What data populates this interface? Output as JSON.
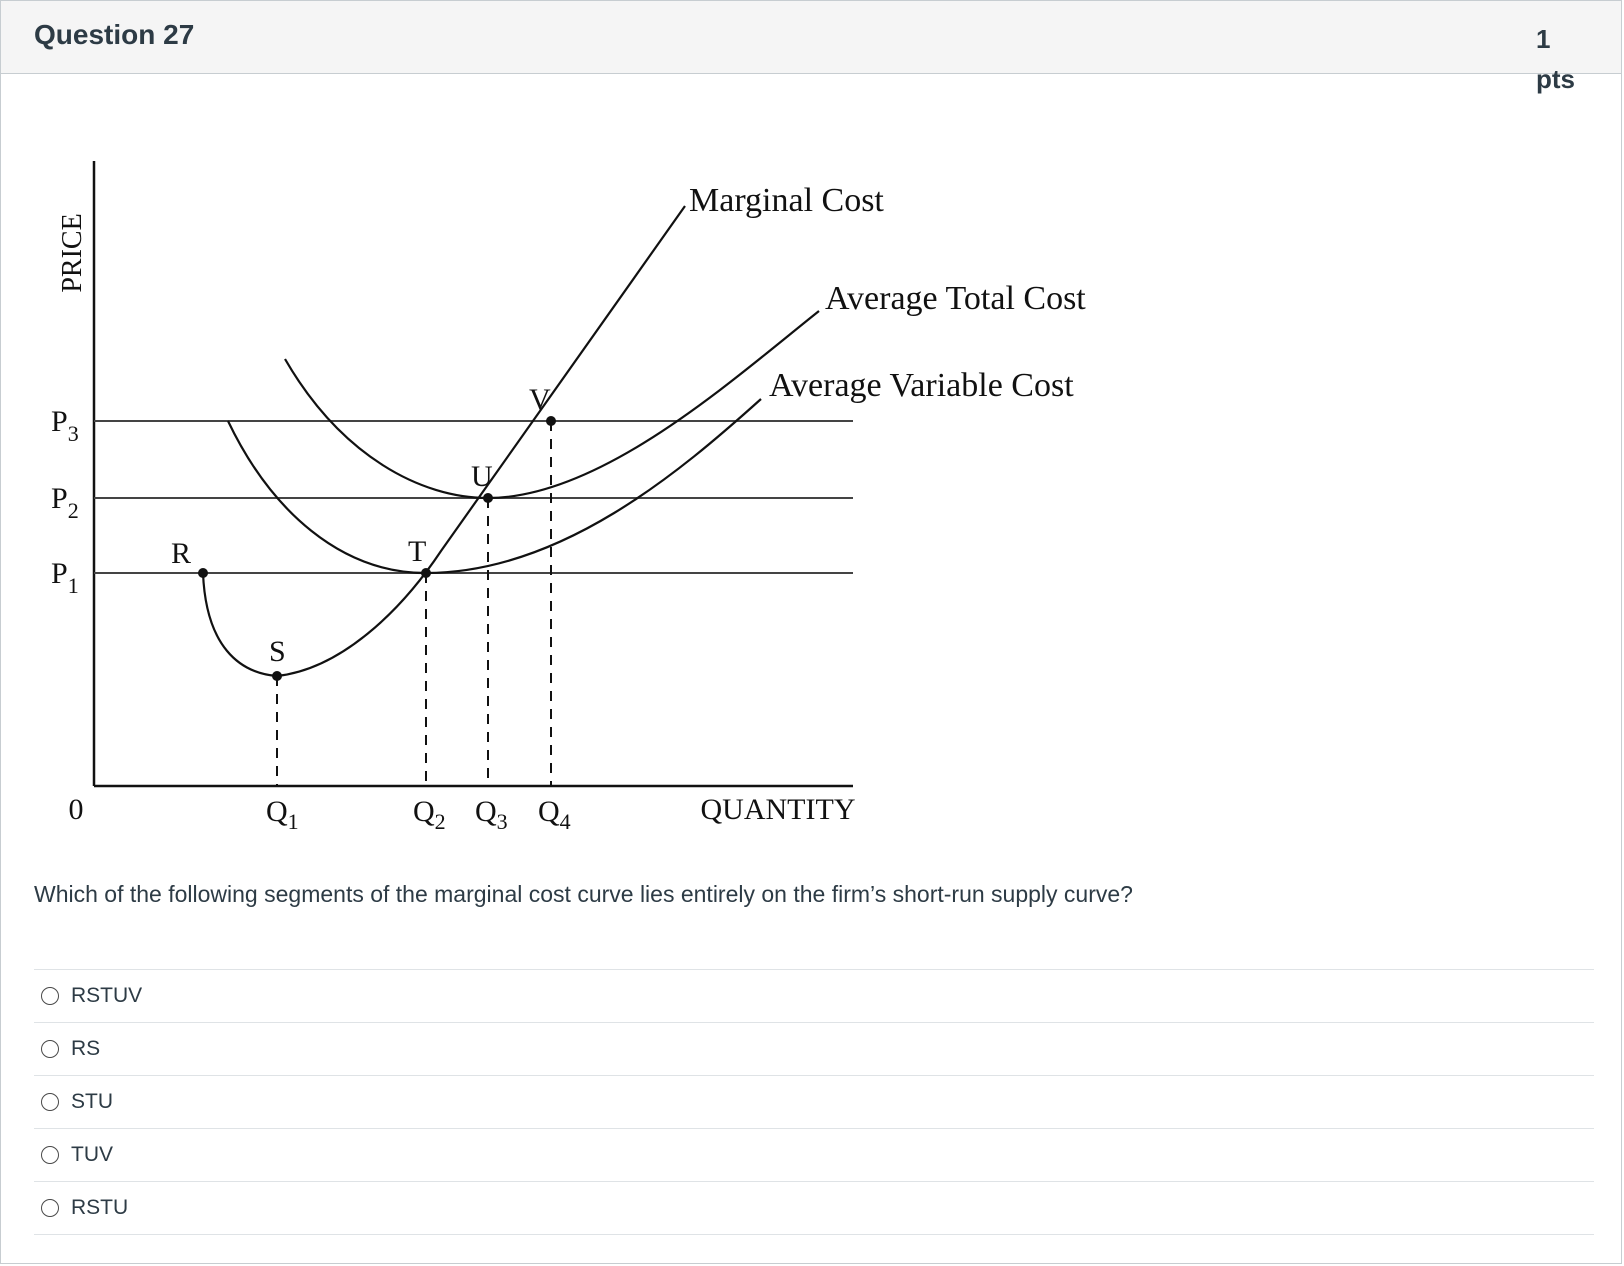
{
  "header": {
    "title": "Question 27",
    "points": "1 pts"
  },
  "figure": {
    "y_axis_label": "PRICE",
    "x_axis_label": "QUANTITY",
    "origin_label": "0",
    "price_levels": [
      {
        "name": "P",
        "sub": "3"
      },
      {
        "name": "P",
        "sub": "2"
      },
      {
        "name": "P",
        "sub": "1"
      }
    ],
    "quantity_levels": [
      {
        "name": "Q",
        "sub": "1"
      },
      {
        "name": "Q",
        "sub": "2"
      },
      {
        "name": "Q",
        "sub": "3"
      },
      {
        "name": "Q",
        "sub": "4"
      }
    ],
    "points": [
      "R",
      "S",
      "T",
      "U",
      "V"
    ],
    "curves": {
      "mc": "Marginal Cost",
      "atc": "Average Total Cost",
      "avc": "Average Variable Cost"
    }
  },
  "question": "Which of the following segments of the marginal cost curve lies entirely on the firm’s short-run supply curve?",
  "answers": [
    {
      "label": "RSTUV"
    },
    {
      "label": "RS"
    },
    {
      "label": "STU"
    },
    {
      "label": "TUV"
    },
    {
      "label": "RSTU"
    }
  ]
}
